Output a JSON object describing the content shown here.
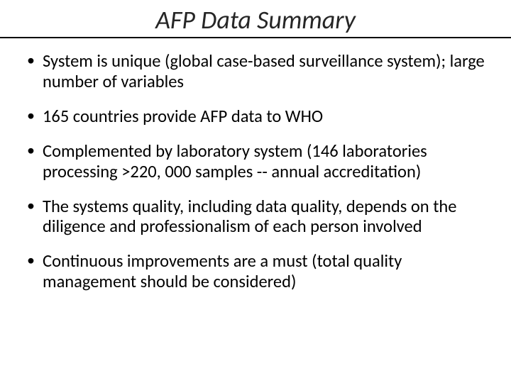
{
  "slide": {
    "title": "AFP Data Summary",
    "title_color": "#262626",
    "title_fontsize": 36,
    "title_italic": true,
    "underline_color": "#000000",
    "background_color": "#ffffff",
    "body_fontsize": 24.5,
    "body_color": "#000000",
    "bullets": [
      "System is unique (global case-based surveillance system); large number of variables",
      "165 countries provide AFP data to WHO",
      "Complemented by laboratory system (146 laboratories processing >220, 000 samples -- annual accreditation)",
      "The systems quality, including data quality, depends on the diligence and professionalism of each person involved",
      "Continuous improvements are a must (total quality management should be considered)"
    ]
  }
}
